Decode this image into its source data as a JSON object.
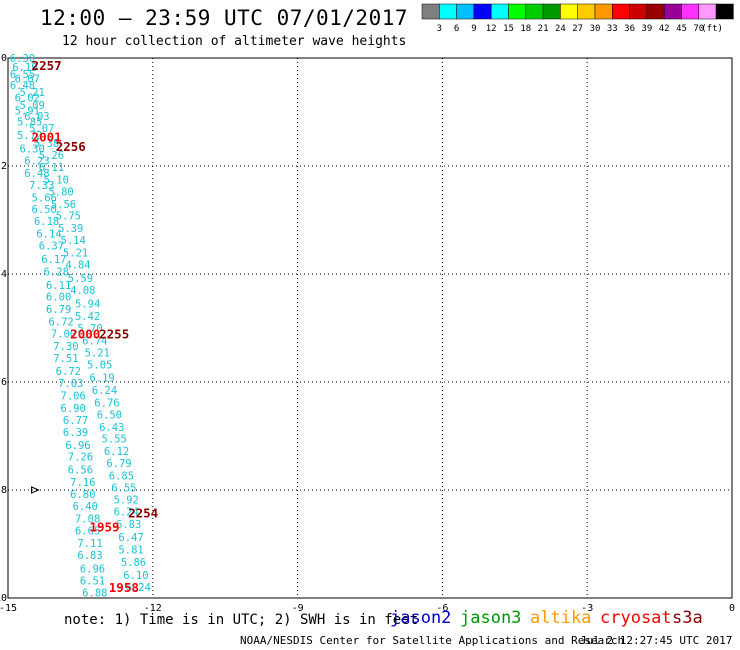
{
  "header": {
    "title": "12:00 — 23:59 UTC 07/01/2017",
    "subtitle": "12 hour collection of altimeter wave heights"
  },
  "color_scale": {
    "colors": [
      "#7f7f7f",
      "#00ffff",
      "#00bfff",
      "#0000ff",
      "#00ffff",
      "#00ff00",
      "#00cc00",
      "#009900",
      "#ffff00",
      "#ffcc00",
      "#ff9900",
      "#ff0000",
      "#cc0000",
      "#990000",
      "#990099",
      "#ff33ff",
      "#ff99ff",
      "#000000"
    ],
    "labels": [
      "3",
      "6",
      "9",
      "12",
      "15",
      "18",
      "21",
      "24",
      "27",
      "30",
      "33",
      "36",
      "39",
      "42",
      "45",
      "70"
    ],
    "unit": "(ft)"
  },
  "map": {
    "lon_ticks": [
      "-15",
      "-12",
      "-9",
      "-6",
      "-3",
      "0"
    ],
    "lat_ticks": [
      "0",
      "-2",
      "-4",
      "-6",
      "-8",
      "-10"
    ],
    "lon_range": [
      -15,
      0
    ],
    "lat_range": [
      -10,
      0
    ],
    "grid_lons": [
      -12,
      -9,
      -6,
      -3
    ],
    "grid_lats": [
      -2,
      -4,
      -6,
      -8
    ]
  },
  "chart_data": {
    "type": "scatter",
    "wave_color": "#19c3d6",
    "wave_color_dark": "#1a9fd0",
    "passes": [
      {
        "name": "pass-a",
        "color": "#19c3d6",
        "points": [
          {
            "lon": -14.7,
            "lat": 0.0,
            "v": "6.30"
          },
          {
            "lon": -14.65,
            "lat": -0.17,
            "v": "6.19"
          },
          {
            "lon": -14.7,
            "lat": -0.3,
            "v": "6.55"
          },
          {
            "lon": -14.6,
            "lat": -0.38,
            "v": "6.07"
          },
          {
            "lon": -14.7,
            "lat": -0.5,
            "v": "6.48"
          },
          {
            "lon": -14.5,
            "lat": -0.63,
            "v": "5.21"
          },
          {
            "lon": -14.6,
            "lat": -0.73,
            "v": "6.02"
          },
          {
            "lon": -14.5,
            "lat": -0.87,
            "v": "5.09"
          },
          {
            "lon": -14.6,
            "lat": -0.97,
            "v": "5.91"
          },
          {
            "lon": -14.4,
            "lat": -1.07,
            "v": "6.03"
          },
          {
            "lon": -14.55,
            "lat": -1.18,
            "v": "5.85"
          },
          {
            "lon": -14.3,
            "lat": -1.3,
            "v": "5.07"
          },
          {
            "lon": -14.55,
            "lat": -1.43,
            "v": "5.72"
          },
          {
            "lon": -14.2,
            "lat": -1.57,
            "v": "5.38"
          },
          {
            "lon": -14.5,
            "lat": -1.68,
            "v": "6.30"
          },
          {
            "lon": -14.1,
            "lat": -1.8,
            "v": "5.26"
          },
          {
            "lon": -14.4,
            "lat": -1.9,
            "v": "6.23"
          },
          {
            "lon": -14.1,
            "lat": -2.02,
            "v": "6.11"
          },
          {
            "lon": -14.4,
            "lat": -2.13,
            "v": "6.48"
          },
          {
            "lon": -14.0,
            "lat": -2.25,
            "v": "5.10"
          },
          {
            "lon": -14.3,
            "lat": -2.35,
            "v": "7.33"
          },
          {
            "lon": -13.9,
            "lat": -2.47,
            "v": "5.80"
          },
          {
            "lon": -14.25,
            "lat": -2.58,
            "v": "5.66"
          },
          {
            "lon": -13.85,
            "lat": -2.7,
            "v": "5.56"
          },
          {
            "lon": -14.25,
            "lat": -2.8,
            "v": "6.50"
          },
          {
            "lon": -13.75,
            "lat": -2.92,
            "v": "5.75"
          },
          {
            "lon": -14.2,
            "lat": -3.02,
            "v": "6.18"
          },
          {
            "lon": -13.7,
            "lat": -3.15,
            "v": "5.39"
          },
          {
            "lon": -14.15,
            "lat": -3.25,
            "v": "6.14"
          },
          {
            "lon": -13.65,
            "lat": -3.37,
            "v": "5.14"
          },
          {
            "lon": -14.1,
            "lat": -3.47,
            "v": "6.37"
          },
          {
            "lon": -13.6,
            "lat": -3.6,
            "v": "5.21"
          },
          {
            "lon": -14.05,
            "lat": -3.72,
            "v": "6.17"
          },
          {
            "lon": -13.55,
            "lat": -3.82,
            "v": "4.84"
          },
          {
            "lon": -14.0,
            "lat": -3.95,
            "v": "6.28"
          },
          {
            "lon": -13.5,
            "lat": -4.07,
            "v": "5.59"
          },
          {
            "lon": -13.95,
            "lat": -4.2,
            "v": "6.11"
          },
          {
            "lon": -13.45,
            "lat": -4.3,
            "v": "4.08"
          },
          {
            "lon": -13.95,
            "lat": -4.42,
            "v": "6.00"
          },
          {
            "lon": -13.35,
            "lat": -4.55,
            "v": "5.94"
          },
          {
            "lon": -13.95,
            "lat": -4.65,
            "v": "6.79"
          },
          {
            "lon": -13.35,
            "lat": -4.78,
            "v": "5.42"
          },
          {
            "lon": -13.9,
            "lat": -4.88,
            "v": "6.72"
          },
          {
            "lon": -13.3,
            "lat": -5.0,
            "v": "5.70"
          },
          {
            "lon": -13.85,
            "lat": -5.1,
            "v": "7.00"
          },
          {
            "lon": -13.2,
            "lat": -5.23,
            "v": "6.74"
          },
          {
            "lon": -13.8,
            "lat": -5.33,
            "v": "7.30"
          },
          {
            "lon": -13.15,
            "lat": -5.45,
            "v": "5.21"
          },
          {
            "lon": -13.8,
            "lat": -5.56,
            "v": "7.51"
          },
          {
            "lon": -13.1,
            "lat": -5.68,
            "v": "5.05"
          },
          {
            "lon": -13.75,
            "lat": -5.8,
            "v": "6.72"
          },
          {
            "lon": -13.05,
            "lat": -5.92,
            "v": "6.19"
          },
          {
            "lon": -13.7,
            "lat": -6.02,
            "v": "7.03"
          },
          {
            "lon": -13.0,
            "lat": -6.15,
            "v": "6.24"
          },
          {
            "lon": -13.65,
            "lat": -6.25,
            "v": "7.06"
          },
          {
            "lon": -12.95,
            "lat": -6.38,
            "v": "6.76"
          },
          {
            "lon": -13.65,
            "lat": -6.48,
            "v": "6.90"
          },
          {
            "lon": -12.9,
            "lat": -6.6,
            "v": "6.50"
          },
          {
            "lon": -13.6,
            "lat": -6.7,
            "v": "6.77"
          },
          {
            "lon": -12.85,
            "lat": -6.83,
            "v": "6.43"
          },
          {
            "lon": -13.6,
            "lat": -6.93,
            "v": "6.39"
          },
          {
            "lon": -12.8,
            "lat": -7.05,
            "v": "5.55"
          },
          {
            "lon": -13.55,
            "lat": -7.17,
            "v": "6.96"
          },
          {
            "lon": -12.75,
            "lat": -7.28,
            "v": "6.12"
          },
          {
            "lon": -13.5,
            "lat": -7.38,
            "v": "7.26"
          },
          {
            "lon": -12.7,
            "lat": -7.5,
            "v": "6.79"
          },
          {
            "lon": -13.5,
            "lat": -7.62,
            "v": "6.56"
          },
          {
            "lon": -12.65,
            "lat": -7.73,
            "v": "6.85"
          },
          {
            "lon": -13.45,
            "lat": -7.85,
            "v": "7.16"
          },
          {
            "lon": -12.6,
            "lat": -7.95,
            "v": "6.55"
          },
          {
            "lon": -13.45,
            "lat": -8.07,
            "v": "6.80"
          },
          {
            "lon": -12.55,
            "lat": -8.18,
            "v": "5.92"
          },
          {
            "lon": -13.4,
            "lat": -8.3,
            "v": "6.40"
          },
          {
            "lon": -12.55,
            "lat": -8.4,
            "v": "6.24"
          },
          {
            "lon": -13.35,
            "lat": -8.53,
            "v": "7.08"
          },
          {
            "lon": -12.5,
            "lat": -8.63,
            "v": "6.83"
          },
          {
            "lon": -13.35,
            "lat": -8.75,
            "v": "6.65"
          },
          {
            "lon": -12.45,
            "lat": -8.87,
            "v": "6.47"
          },
          {
            "lon": -13.3,
            "lat": -8.98,
            "v": "7.11"
          },
          {
            "lon": -12.45,
            "lat": -9.1,
            "v": "5.81"
          },
          {
            "lon": -13.3,
            "lat": -9.2,
            "v": "6.83"
          },
          {
            "lon": -12.4,
            "lat": -9.33,
            "v": "5.86"
          },
          {
            "lon": -13.25,
            "lat": -9.45,
            "v": "6.96"
          },
          {
            "lon": -12.35,
            "lat": -9.57,
            "v": "6.10"
          },
          {
            "lon": -13.25,
            "lat": -9.68,
            "v": "6.51"
          },
          {
            "lon": -12.3,
            "lat": -9.8,
            "v": "6.24"
          },
          {
            "lon": -13.2,
            "lat": -9.9,
            "v": "6.88"
          }
        ]
      }
    ],
    "time_labels": [
      {
        "lon": -14.2,
        "lat": -0.13,
        "v": "2257",
        "color": "#8b0000"
      },
      {
        "lon": -14.2,
        "lat": -1.45,
        "v": "2001",
        "color": "#ff0000"
      },
      {
        "lon": -13.7,
        "lat": -1.63,
        "v": "2256",
        "color": "#8b0000"
      },
      {
        "lon": -13.4,
        "lat": -5.1,
        "v": "2000",
        "color": "#ff0000"
      },
      {
        "lon": -12.8,
        "lat": -5.1,
        "v": "2255",
        "color": "#8b0000"
      },
      {
        "lon": -12.2,
        "lat": -8.42,
        "v": "2254",
        "color": "#8b0000"
      },
      {
        "lon": -13.0,
        "lat": -8.68,
        "v": "1959",
        "color": "#ff0000"
      },
      {
        "lon": -12.6,
        "lat": -9.8,
        "v": "1958",
        "color": "#ff0000"
      }
    ],
    "wind_marker": {
      "lon": -14.45,
      "lat": -8.0
    }
  },
  "footer": {
    "note": "note: 1) Time is in UTC; 2) SWH is in feet",
    "credit": "NOAA/NESDIS Center for Satellite Applications and Research",
    "timestamp": "Jul  2 12:27:45 UTC 2017"
  },
  "satellites": [
    {
      "name": "jason2",
      "color": "#0000cc"
    },
    {
      "name": "jason3",
      "color": "#009900"
    },
    {
      "name": "altika",
      "color": "#ff9900"
    },
    {
      "name": "cryosat",
      "color": "#ff0000"
    },
    {
      "name": "s3a",
      "color": "#8b0000"
    }
  ]
}
